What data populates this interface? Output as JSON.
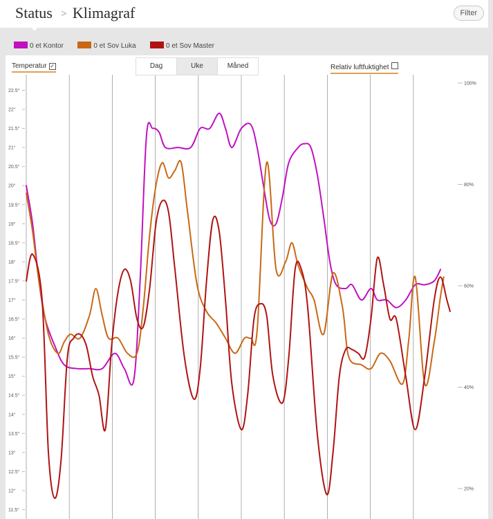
{
  "header": {
    "crumbs": [
      "Status",
      "Klimagraf"
    ],
    "separator": ">",
    "filter_label": "Filter"
  },
  "legend": [
    {
      "label": "0 et Kontor",
      "color": "#c010c0"
    },
    {
      "label": "0 et Sov Luka",
      "color": "#c86814"
    },
    {
      "label": "0 et Sov Master",
      "color": "#b01212"
    }
  ],
  "controls": {
    "temperature_label": "Temperatur",
    "temperature_checked": true,
    "humidity_label": "Relativ luftfuktighet",
    "humidity_checked": false,
    "tabs": [
      "Dag",
      "Uke",
      "Måned"
    ],
    "active_tab": 1
  },
  "chart_data": {
    "type": "line",
    "y_left": {
      "min": 11.5,
      "max": 22.5,
      "step": 0.5,
      "unit": "°",
      "tick_labels": [
        "11.5°",
        "12°",
        "12.5°",
        "13°",
        "13.5°",
        "14°",
        "14.5°",
        "15°",
        "15.5°",
        "16°",
        "16.5°",
        "17°",
        "17.5°",
        "18°",
        "18.5°",
        "19°",
        "19.5°",
        "20°",
        "20.5°",
        "21°",
        "21.5°",
        "22°",
        "22.5°"
      ]
    },
    "y_right": {
      "min": 20,
      "max": 100,
      "unit": "%",
      "tick_labels": [
        "20%",
        "40%",
        "60%",
        "80%",
        "100%"
      ]
    },
    "x_range": [
      0,
      6.8
    ],
    "vertical_gridlines": 10,
    "grid": true,
    "series": [
      {
        "name": "0 et Kontor",
        "color": "#c010c0",
        "points": [
          [
            0,
            20.0
          ],
          [
            0.1,
            19.0
          ],
          [
            0.2,
            17.5
          ],
          [
            0.3,
            16.5
          ],
          [
            0.45,
            15.8
          ],
          [
            0.6,
            15.3
          ],
          [
            0.8,
            15.2
          ],
          [
            1.0,
            15.2
          ],
          [
            1.2,
            15.2
          ],
          [
            1.4,
            15.6
          ],
          [
            1.55,
            15.2
          ],
          [
            1.7,
            14.9
          ],
          [
            1.8,
            17.5
          ],
          [
            1.9,
            21.3
          ],
          [
            2.0,
            21.5
          ],
          [
            2.1,
            21.4
          ],
          [
            2.2,
            21.0
          ],
          [
            2.4,
            21.0
          ],
          [
            2.6,
            21.0
          ],
          [
            2.75,
            21.5
          ],
          [
            2.9,
            21.5
          ],
          [
            3.05,
            21.9
          ],
          [
            3.15,
            21.5
          ],
          [
            3.25,
            21.0
          ],
          [
            3.4,
            21.5
          ],
          [
            3.55,
            21.6
          ],
          [
            3.65,
            21.0
          ],
          [
            3.75,
            20.0
          ],
          [
            3.85,
            19.1
          ],
          [
            3.95,
            19.0
          ],
          [
            4.05,
            19.7
          ],
          [
            4.15,
            20.6
          ],
          [
            4.3,
            21.0
          ],
          [
            4.4,
            21.1
          ],
          [
            4.5,
            21.0
          ],
          [
            4.6,
            20.3
          ],
          [
            4.7,
            19.2
          ],
          [
            4.8,
            18.0
          ],
          [
            4.9,
            17.4
          ],
          [
            5.05,
            17.3
          ],
          [
            5.15,
            17.4
          ],
          [
            5.3,
            17.0
          ],
          [
            5.45,
            17.3
          ],
          [
            5.55,
            17.0
          ],
          [
            5.7,
            17.0
          ],
          [
            5.85,
            16.8
          ],
          [
            6.0,
            17.0
          ],
          [
            6.15,
            17.4
          ],
          [
            6.3,
            17.4
          ],
          [
            6.45,
            17.5
          ],
          [
            6.55,
            17.8
          ]
        ]
      },
      {
        "name": "0 et Sov Luka",
        "color": "#c86814",
        "points": [
          [
            0,
            19.8
          ],
          [
            0.1,
            18.8
          ],
          [
            0.2,
            17.5
          ],
          [
            0.35,
            16.1
          ],
          [
            0.5,
            15.6
          ],
          [
            0.6,
            15.9
          ],
          [
            0.7,
            16.1
          ],
          [
            0.85,
            16.0
          ],
          [
            1.0,
            16.6
          ],
          [
            1.1,
            17.3
          ],
          [
            1.2,
            16.6
          ],
          [
            1.3,
            16.0
          ],
          [
            1.45,
            16.0
          ],
          [
            1.6,
            15.6
          ],
          [
            1.75,
            15.6
          ],
          [
            1.85,
            16.8
          ],
          [
            1.95,
            18.7
          ],
          [
            2.05,
            20.0
          ],
          [
            2.15,
            20.6
          ],
          [
            2.25,
            20.2
          ],
          [
            2.35,
            20.4
          ],
          [
            2.45,
            20.6
          ],
          [
            2.55,
            19.3
          ],
          [
            2.7,
            17.4
          ],
          [
            2.85,
            16.7
          ],
          [
            3.0,
            16.4
          ],
          [
            3.15,
            16.0
          ],
          [
            3.3,
            15.6
          ],
          [
            3.45,
            16.0
          ],
          [
            3.55,
            16.0
          ],
          [
            3.65,
            16.2
          ],
          [
            3.8,
            20.6
          ],
          [
            3.95,
            17.8
          ],
          [
            4.1,
            18.0
          ],
          [
            4.2,
            18.5
          ],
          [
            4.3,
            17.9
          ],
          [
            4.45,
            17.3
          ],
          [
            4.55,
            17.0
          ],
          [
            4.7,
            16.1
          ],
          [
            4.85,
            17.7
          ],
          [
            5.0,
            16.8
          ],
          [
            5.1,
            15.5
          ],
          [
            5.3,
            15.3
          ],
          [
            5.45,
            15.2
          ],
          [
            5.6,
            15.6
          ],
          [
            5.75,
            15.4
          ],
          [
            5.95,
            14.8
          ],
          [
            6.05,
            16.0
          ],
          [
            6.15,
            17.6
          ],
          [
            6.3,
            14.8
          ],
          [
            6.45,
            15.9
          ],
          [
            6.55,
            17.1
          ],
          [
            6.6,
            17.6
          ]
        ]
      },
      {
        "name": "0 et Sov Master",
        "color": "#b01212",
        "points": [
          [
            0,
            17.5
          ],
          [
            0.1,
            18.2
          ],
          [
            0.25,
            17.0
          ],
          [
            0.35,
            13.0
          ],
          [
            0.45,
            11.8
          ],
          [
            0.55,
            12.8
          ],
          [
            0.65,
            15.5
          ],
          [
            0.75,
            16.0
          ],
          [
            0.85,
            16.1
          ],
          [
            0.95,
            15.8
          ],
          [
            1.05,
            15.0
          ],
          [
            1.15,
            14.5
          ],
          [
            1.25,
            13.6
          ],
          [
            1.35,
            15.8
          ],
          [
            1.45,
            17.2
          ],
          [
            1.55,
            17.8
          ],
          [
            1.65,
            17.5
          ],
          [
            1.75,
            16.5
          ],
          [
            1.85,
            16.3
          ],
          [
            1.95,
            17.3
          ],
          [
            2.05,
            19.0
          ],
          [
            2.15,
            19.6
          ],
          [
            2.25,
            19.3
          ],
          [
            2.35,
            17.8
          ],
          [
            2.5,
            15.5
          ],
          [
            2.65,
            14.4
          ],
          [
            2.75,
            15.2
          ],
          [
            2.85,
            17.5
          ],
          [
            2.95,
            19.1
          ],
          [
            3.05,
            18.8
          ],
          [
            3.15,
            17.0
          ],
          [
            3.25,
            14.8
          ],
          [
            3.4,
            13.6
          ],
          [
            3.5,
            14.5
          ],
          [
            3.6,
            16.5
          ],
          [
            3.7,
            16.9
          ],
          [
            3.8,
            16.6
          ],
          [
            3.9,
            15.0
          ],
          [
            4.05,
            14.3
          ],
          [
            4.15,
            15.5
          ],
          [
            4.25,
            17.8
          ],
          [
            4.35,
            17.8
          ],
          [
            4.45,
            16.8
          ],
          [
            4.6,
            13.5
          ],
          [
            4.75,
            11.9
          ],
          [
            4.85,
            13.0
          ],
          [
            4.95,
            15.0
          ],
          [
            5.05,
            15.7
          ],
          [
            5.15,
            15.7
          ],
          [
            5.25,
            15.6
          ],
          [
            5.35,
            15.5
          ],
          [
            5.45,
            16.5
          ],
          [
            5.55,
            18.1
          ],
          [
            5.65,
            17.4
          ],
          [
            5.75,
            16.5
          ],
          [
            5.85,
            16.5
          ],
          [
            6.0,
            15.0
          ],
          [
            6.15,
            13.6
          ],
          [
            6.3,
            15.0
          ],
          [
            6.45,
            17.0
          ],
          [
            6.55,
            17.6
          ],
          [
            6.65,
            17.0
          ],
          [
            6.7,
            16.7
          ]
        ]
      }
    ]
  }
}
